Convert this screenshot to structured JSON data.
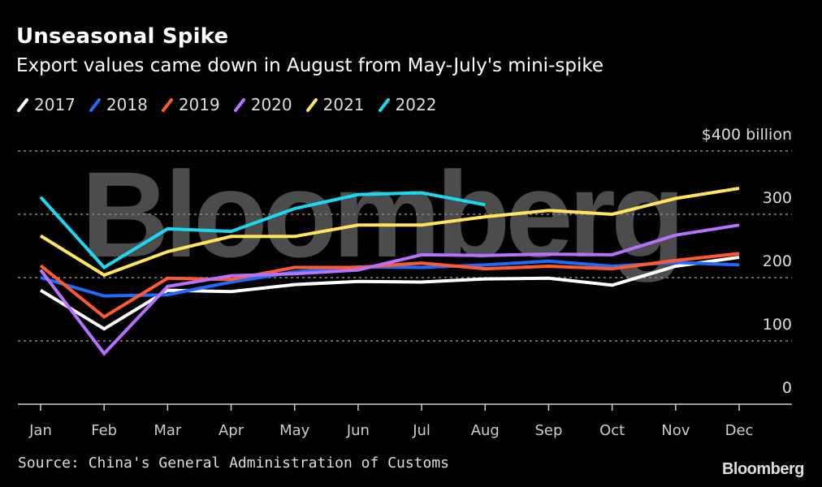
{
  "header": {
    "title": "Unseasonal Spike",
    "subtitle": "Export values came down in August from May-July's mini-spike"
  },
  "footer": {
    "source": "Source: China's General Administration of Customs",
    "brand": "Bloomberg"
  },
  "watermark": "Bloomberg",
  "chart_data": {
    "type": "line",
    "title": "Unseasonal Spike",
    "subtitle": "Export values came down in August from May-July's mini-spike",
    "xlabel": "",
    "ylabel": "$ billion",
    "y_unit_label": "$400 billion",
    "ylim": [
      0,
      400
    ],
    "yticks": [
      0,
      100,
      200,
      300,
      400
    ],
    "ytick_labels": [
      "0",
      "100",
      "200",
      "300",
      "$400 billion"
    ],
    "grid": true,
    "legend_position": "top-left",
    "categories": [
      "Jan",
      "Feb",
      "Mar",
      "Apr",
      "May",
      "Jun",
      "Jul",
      "Aug",
      "Sep",
      "Oct",
      "Nov",
      "Dec"
    ],
    "series": [
      {
        "name": "2017",
        "color": "#ffffff",
        "values": [
          180,
          119,
          180,
          178,
          189,
          194,
          193,
          198,
          199,
          188,
          218,
          232
        ]
      },
      {
        "name": "2018",
        "color": "#1f6bff",
        "values": [
          200,
          171,
          173,
          193,
          209,
          217,
          216,
          220,
          226,
          218,
          224,
          220
        ]
      },
      {
        "name": "2019",
        "color": "#ff5a2e",
        "values": [
          219,
          138,
          199,
          197,
          216,
          216,
          223,
          214,
          218,
          214,
          227,
          238
        ]
      },
      {
        "name": "2020",
        "color": "#b870ff",
        "values": [
          212,
          80,
          186,
          203,
          206,
          212,
          236,
          235,
          237,
          236,
          267,
          283
        ]
      },
      {
        "name": "2021",
        "color": "#ffe45c",
        "values": [
          266,
          204,
          241,
          265,
          265,
          283,
          283,
          296,
          306,
          300,
          325,
          341
        ]
      },
      {
        "name": "2022",
        "color": "#19d9f2",
        "values": [
          327,
          216,
          277,
          273,
          309,
          331,
          334,
          315,
          null,
          null,
          null,
          null
        ]
      }
    ]
  }
}
